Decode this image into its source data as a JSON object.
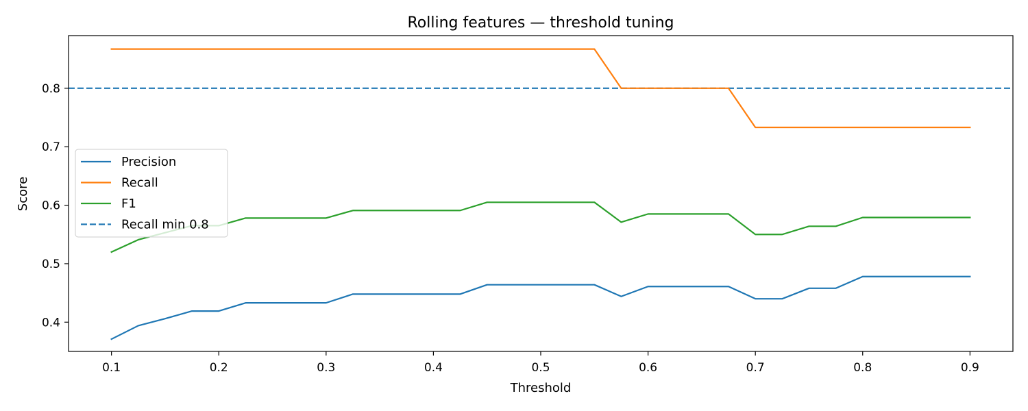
{
  "chart_data": {
    "type": "line",
    "title": "Rolling features — threshold tuning",
    "xlabel": "Threshold",
    "ylabel": "Score",
    "xlim": [
      0.06,
      0.94
    ],
    "ylim": [
      0.35,
      0.89
    ],
    "xticks": [
      0.1,
      0.2,
      0.3,
      0.4,
      0.5,
      0.6,
      0.7,
      0.8,
      0.9
    ],
    "xtick_labels": [
      "0.1",
      "0.2",
      "0.3",
      "0.4",
      "0.5",
      "0.6",
      "0.7",
      "0.8",
      "0.9"
    ],
    "yticks": [
      0.4,
      0.5,
      0.6,
      0.7,
      0.8
    ],
    "ytick_labels": [
      "0.4",
      "0.5",
      "0.6",
      "0.7",
      "0.8"
    ],
    "grid": false,
    "legend_position": "center-left",
    "x": [
      0.1,
      0.125,
      0.15,
      0.175,
      0.2,
      0.225,
      0.25,
      0.275,
      0.3,
      0.325,
      0.35,
      0.375,
      0.4,
      0.425,
      0.45,
      0.475,
      0.5,
      0.525,
      0.55,
      0.575,
      0.6,
      0.625,
      0.65,
      0.675,
      0.7,
      0.725,
      0.75,
      0.775,
      0.8,
      0.825,
      0.85,
      0.875,
      0.9
    ],
    "series": [
      {
        "name": "Precision",
        "color": "#1f77b4",
        "values": [
          0.371,
          0.394,
          0.406,
          0.419,
          0.419,
          0.433,
          0.433,
          0.433,
          0.433,
          0.448,
          0.448,
          0.448,
          0.448,
          0.448,
          0.464,
          0.464,
          0.464,
          0.464,
          0.464,
          0.444,
          0.461,
          0.461,
          0.461,
          0.461,
          0.44,
          0.44,
          0.458,
          0.458,
          0.478,
          0.478,
          0.478,
          0.478,
          0.478
        ]
      },
      {
        "name": "Recall",
        "color": "#ff7f0e",
        "values": [
          0.867,
          0.867,
          0.867,
          0.867,
          0.867,
          0.867,
          0.867,
          0.867,
          0.867,
          0.867,
          0.867,
          0.867,
          0.867,
          0.867,
          0.867,
          0.867,
          0.867,
          0.867,
          0.867,
          0.8,
          0.8,
          0.8,
          0.8,
          0.8,
          0.733,
          0.733,
          0.733,
          0.733,
          0.733,
          0.733,
          0.733,
          0.733,
          0.733
        ]
      },
      {
        "name": "F1",
        "color": "#2ca02c",
        "values": [
          0.52,
          0.541,
          0.553,
          0.565,
          0.565,
          0.578,
          0.578,
          0.578,
          0.578,
          0.591,
          0.591,
          0.591,
          0.591,
          0.591,
          0.605,
          0.605,
          0.605,
          0.605,
          0.605,
          0.571,
          0.585,
          0.585,
          0.585,
          0.585,
          0.55,
          0.55,
          0.564,
          0.564,
          0.579,
          0.579,
          0.579,
          0.579,
          0.579
        ]
      }
    ],
    "reference_lines": [
      {
        "name": "Recall min 0.8",
        "y": 0.8,
        "color": "#1f77b4",
        "style": "dashed"
      }
    ]
  }
}
